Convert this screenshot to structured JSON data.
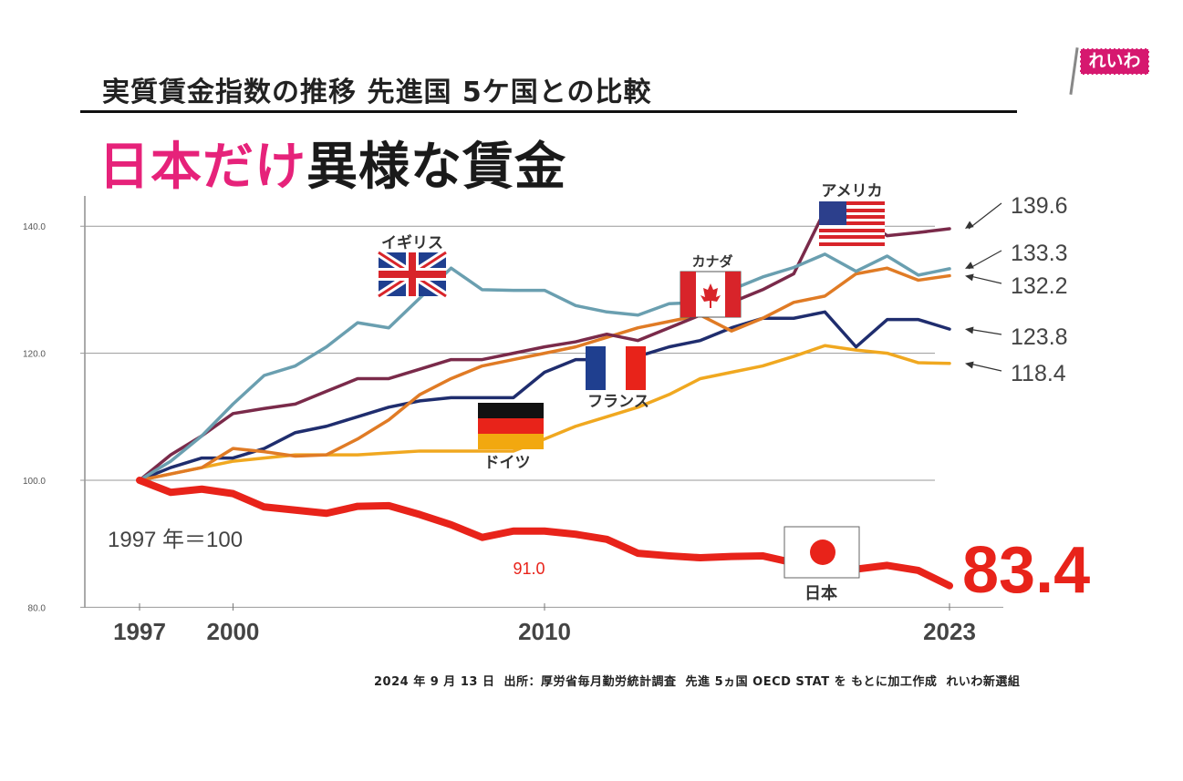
{
  "header": {
    "subtitle": "実質賃金指数の推移 先進国 5ケ国との比較",
    "headline_highlight": "日本だけ",
    "headline_rest": "異様な賃金",
    "logo_text": "れいわ"
  },
  "footer": "2024 年 9 月 13 日  出所：厚労省毎月勤労統計調査  先進 5ヵ国 OECD STAT を もとに加工作成  れいわ新選組",
  "chart_data": {
    "type": "line",
    "title": "実質賃金指数の推移 先進国 5ケ国との比較",
    "base_note": "1997 年＝100",
    "ylim": [
      80,
      145
    ],
    "y_ticks": [
      "80.0",
      "100.0",
      "120.0",
      "140.0"
    ],
    "y_tick_values": [
      80,
      100,
      120,
      140
    ],
    "x_ticks": [
      "1997",
      "2000",
      "2010",
      "2023"
    ],
    "x_tick_values": [
      1997,
      2000,
      2010,
      2023
    ],
    "xlim": [
      1997,
      2023
    ],
    "grid": "horizontal",
    "x": [
      1997,
      1998,
      1999,
      2000,
      2001,
      2002,
      2003,
      2004,
      2005,
      2006,
      2007,
      2008,
      2009,
      2010,
      2011,
      2012,
      2013,
      2014,
      2015,
      2016,
      2017,
      2018,
      2019,
      2020,
      2021,
      2022,
      2023
    ],
    "series": [
      {
        "name": "アメリカ",
        "key": "usa",
        "color": "#7a2a4a",
        "end_label": "139.6",
        "values": [
          100,
          104,
          107,
          110.5,
          111.3,
          112,
          114,
          116,
          116,
          117.5,
          119,
          119,
          120,
          121,
          121.8,
          123,
          122,
          124,
          126,
          128,
          130,
          132.5,
          142.5,
          142,
          138.5,
          139,
          139.6
        ]
      },
      {
        "name": "イギリス",
        "key": "uk",
        "color": "#6a9fb0",
        "end_label": "133.3",
        "values": [
          100,
          103,
          107,
          112,
          116.5,
          118,
          121,
          124.8,
          124,
          128.7,
          133.4,
          130,
          129.9,
          129.9,
          127.5,
          126.5,
          126,
          127.8,
          128,
          130,
          132,
          133.5,
          135.6,
          132.9,
          135.3,
          132.3,
          133.3
        ]
      },
      {
        "name": "カナダ",
        "key": "canada",
        "color": "#e07b25",
        "end_label": "132.2",
        "values": [
          100,
          101,
          102,
          105,
          104.5,
          103.8,
          104,
          106.5,
          109.5,
          113.5,
          116,
          118,
          119,
          120,
          121,
          122.5,
          124,
          125,
          126,
          123.5,
          125.5,
          128,
          129,
          132.5,
          133.4,
          131.5,
          132.2
        ]
      },
      {
        "name": "フランス",
        "key": "france",
        "color": "#1f2d6e",
        "end_label": "123.8",
        "values": [
          100,
          102,
          103.5,
          103.5,
          105,
          107.5,
          108.5,
          110,
          111.5,
          112.5,
          113,
          113,
          113,
          117,
          119,
          119,
          119.5,
          121,
          122,
          124,
          125.5,
          125.5,
          126.5,
          121,
          125.3,
          125.3,
          123.8
        ]
      },
      {
        "name": "ドイツ",
        "key": "germany",
        "color": "#f0a820",
        "end_label": "118.4",
        "values": [
          100,
          101,
          102,
          103,
          103.5,
          104,
          104,
          104,
          104.3,
          104.6,
          104.6,
          104.6,
          104.6,
          106.5,
          108.5,
          110,
          111.5,
          113.5,
          116,
          117,
          118,
          119.5,
          121.2,
          120.5,
          120,
          118.5,
          118.4
        ]
      },
      {
        "name": "日本",
        "key": "japan",
        "color": "#e8231a",
        "end_label": "83.4",
        "min_label": "91.0",
        "values": [
          100,
          98.1,
          98.6,
          97.9,
          95.8,
          95.3,
          94.8,
          95.9,
          96.0,
          94.6,
          93.0,
          91.0,
          92.0,
          92.0,
          91.5,
          90.7,
          88.5,
          88.1,
          87.8,
          88.0,
          88.1,
          87.0,
          86.0,
          86.0,
          86.6,
          85.8,
          83.4
        ]
      }
    ]
  }
}
